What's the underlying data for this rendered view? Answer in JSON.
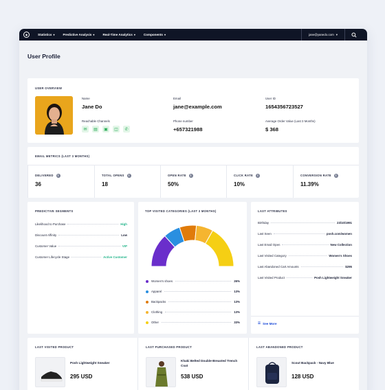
{
  "nav": {
    "items": [
      "Statistics",
      "Predictive Analysis",
      "Real-Time Analytics",
      "Components"
    ],
    "user_email": "jane@yanedo.com"
  },
  "page_title": "User Profile",
  "overview": {
    "label": "USER OVERVIEW",
    "name_label": "Name",
    "name": "Jane Do",
    "email_label": "Email",
    "email": "jane@example.com",
    "userid_label": "User ID",
    "userid": "1654356723527",
    "channels_label": "Reachable Channels",
    "channels": [
      "email-icon",
      "message-icon",
      "push-icon",
      "chat-icon",
      "whatsapp-icon"
    ],
    "phone_label": "Phone number",
    "phone": "+657321988",
    "aov_label": "Average Order Value (Last 3 Months)",
    "aov": "$ 368"
  },
  "email_metrics": {
    "label": "EMAIL METRICS (LAST 3 MONTHS)",
    "items": [
      {
        "label": "DELIVERED",
        "value": "36"
      },
      {
        "label": "TOTAL OPENS",
        "value": "18"
      },
      {
        "label": "OPEN RATE",
        "value": "50%"
      },
      {
        "label": "CLICK RATE",
        "value": "10%"
      },
      {
        "label": "CONVERSION RATE",
        "value": "11.39%"
      }
    ]
  },
  "predictive": {
    "label": "PREDICTIVE SEGMENTS",
    "rows": [
      {
        "k": "Likelihood to Purchase",
        "v": "High",
        "color": "#22b48a"
      },
      {
        "k": "Discount Affinity",
        "v": "Low",
        "color": "#1a1f36"
      },
      {
        "k": "Customer Value",
        "v": "VIP",
        "color": "#22b48a"
      },
      {
        "k": "Customer Lifecycle Stage",
        "v": "Active Customer",
        "color": "#22b48a"
      }
    ]
  },
  "chart_data": {
    "type": "pie",
    "title": "TOP VISITED CATEGORIES (LAST 3 MONTHS)",
    "categories": [
      "Women's shoes",
      "Apparel",
      "Backpacks",
      "Clothing",
      "Other"
    ],
    "values": [
      26,
      13,
      13,
      13,
      33
    ],
    "value_labels": [
      "26%",
      "13%",
      "13%",
      "13%",
      "33%"
    ],
    "colors": [
      "#6a2ecb",
      "#2a8fe0",
      "#e07b0a",
      "#f5b530",
      "#f5cf14"
    ],
    "style": "semi-donut"
  },
  "last_attributes": {
    "label": "LAST ATTRIBUTES",
    "rows": [
      {
        "k": "Birthday",
        "v": "23/10/1991"
      },
      {
        "k": "Last Seen",
        "v": "posh.com/women"
      },
      {
        "k": "Last Email Open",
        "v": "New Collection"
      },
      {
        "k": "Last Visited Category",
        "v": "Women's Shoes"
      },
      {
        "k": "Last Abandoned Cart Amounts",
        "v": "$295"
      },
      {
        "k": "Last Visited Product",
        "v": "Posh Lightweight Sneaker"
      }
    ],
    "see_more": "See More"
  },
  "products": [
    {
      "label": "LAST VISITED PRODUCT",
      "name": "Posh Lightweight Sneaker",
      "price": "295 USD"
    },
    {
      "label": "LAST PURCHASED PRODUCT",
      "name": "Khaki Belted Double-Breasted Trench Coat",
      "price": "538 USD"
    },
    {
      "label": "LAST ABANDONED PRODUCT",
      "name": "Scout Backpack - Navy Blue",
      "price": "128 USD"
    }
  ]
}
